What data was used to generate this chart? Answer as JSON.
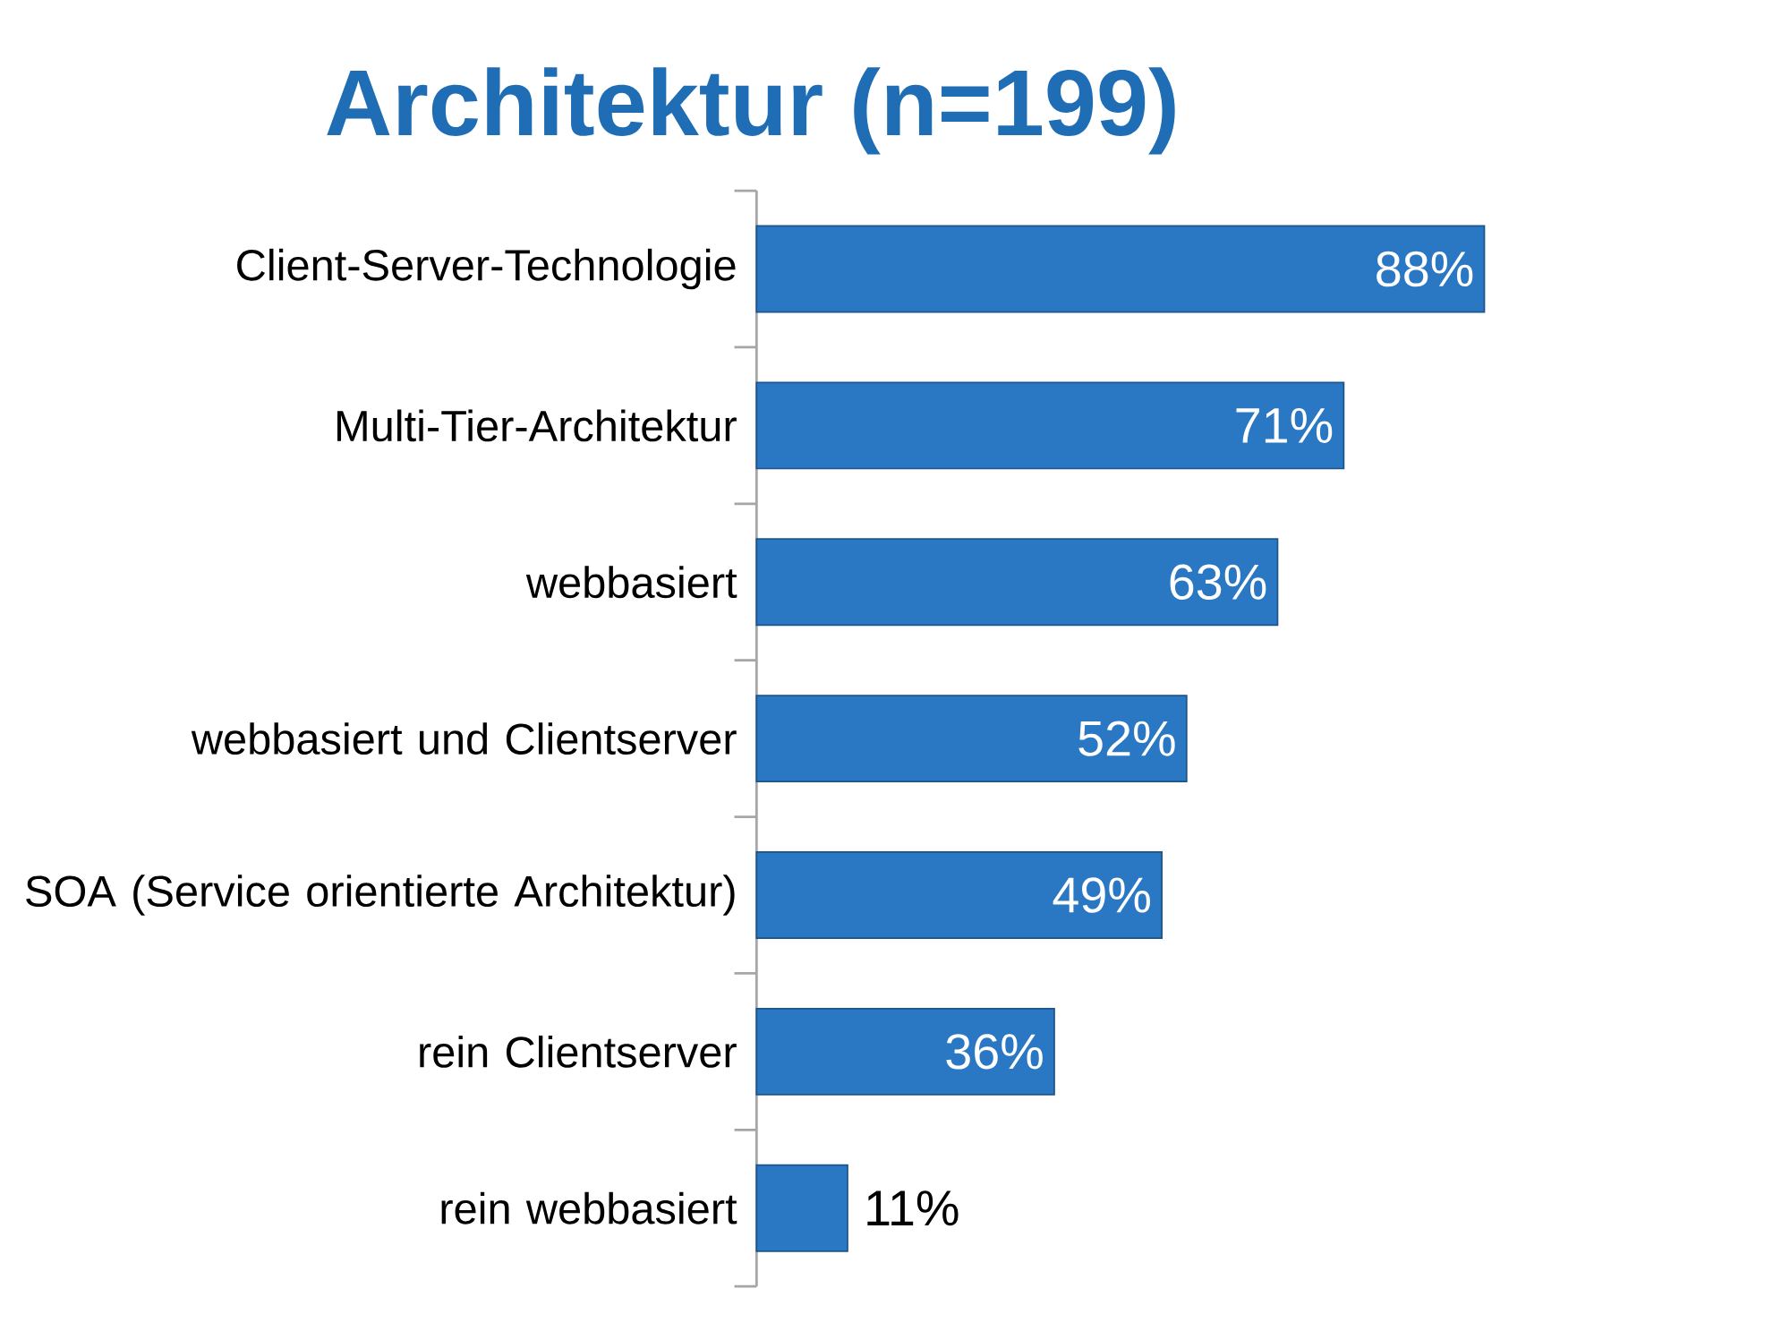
{
  "chart_data": {
    "type": "bar",
    "orientation": "horizontal",
    "title": "Architektur (n=199)",
    "categories": [
      "Client-Server-Technologie",
      "Multi-Tier-Architektur",
      "webbasiert",
      "webbasiert und Clientserver",
      "SOA (Service orientierte Architektur)",
      "rein Clientserver",
      "rein webbasiert"
    ],
    "values": [
      88,
      71,
      63,
      52,
      49,
      36,
      11
    ],
    "value_labels": [
      "88%",
      "71%",
      "63%",
      "52%",
      "49%",
      "36%",
      "11%"
    ],
    "color": "#2a78c4"
  }
}
